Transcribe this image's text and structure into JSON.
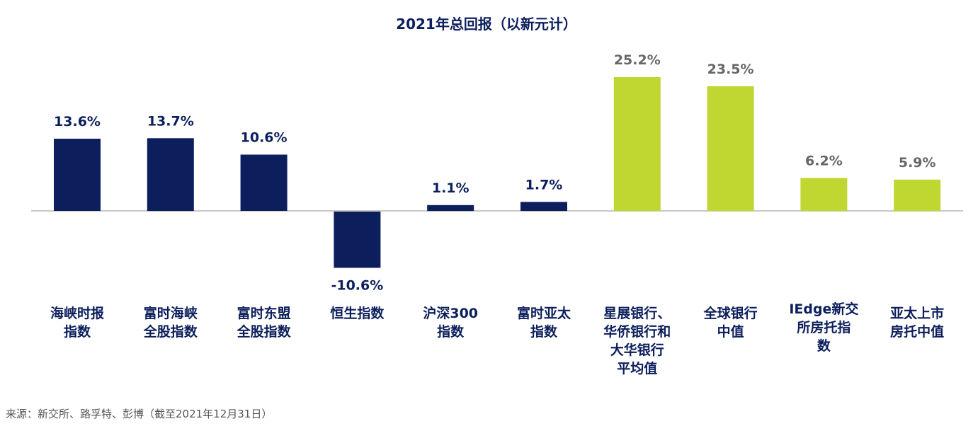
{
  "chart_data": {
    "type": "bar",
    "title": "2021年总回报（以新元计）",
    "categories": [
      "海峡时报\n指数",
      "富时海峡\n全股指数",
      "富时东盟\n全股指数",
      "恒生指数",
      "沪深300\n指数",
      "富时亚太\n指数",
      "星展银行、\n华侨银行和\n大华银行\n平均值",
      "全球银行\n中值",
      "IEdge新交\n所房托指\n数",
      "亚太上市\n房托中值"
    ],
    "values": [
      13.6,
      13.7,
      10.6,
      -10.6,
      1.1,
      1.7,
      25.2,
      23.5,
      6.2,
      5.9
    ],
    "data_labels": [
      "13.6%",
      "13.7%",
      "10.6%",
      "-10.6%",
      "1.1%",
      "1.7%",
      "25.2%",
      "23.5%",
      "6.2%",
      "5.9%"
    ],
    "bar_colors": [
      "#0c1f5c",
      "#0c1f5c",
      "#0c1f5c",
      "#0c1f5c",
      "#0c1f5c",
      "#0c1f5c",
      "#bfd730",
      "#bfd730",
      "#bfd730",
      "#bfd730"
    ],
    "label_colors": [
      "#0c1f5c",
      "#0c1f5c",
      "#0c1f5c",
      "#0c1f5c",
      "#0c1f5c",
      "#0c1f5c",
      "#666666",
      "#666666",
      "#666666",
      "#666666"
    ],
    "xlabel": "",
    "ylabel": "",
    "grid": false
  },
  "source": "来源：新交所、路孚特、彭博（截至2021年12月31日）"
}
